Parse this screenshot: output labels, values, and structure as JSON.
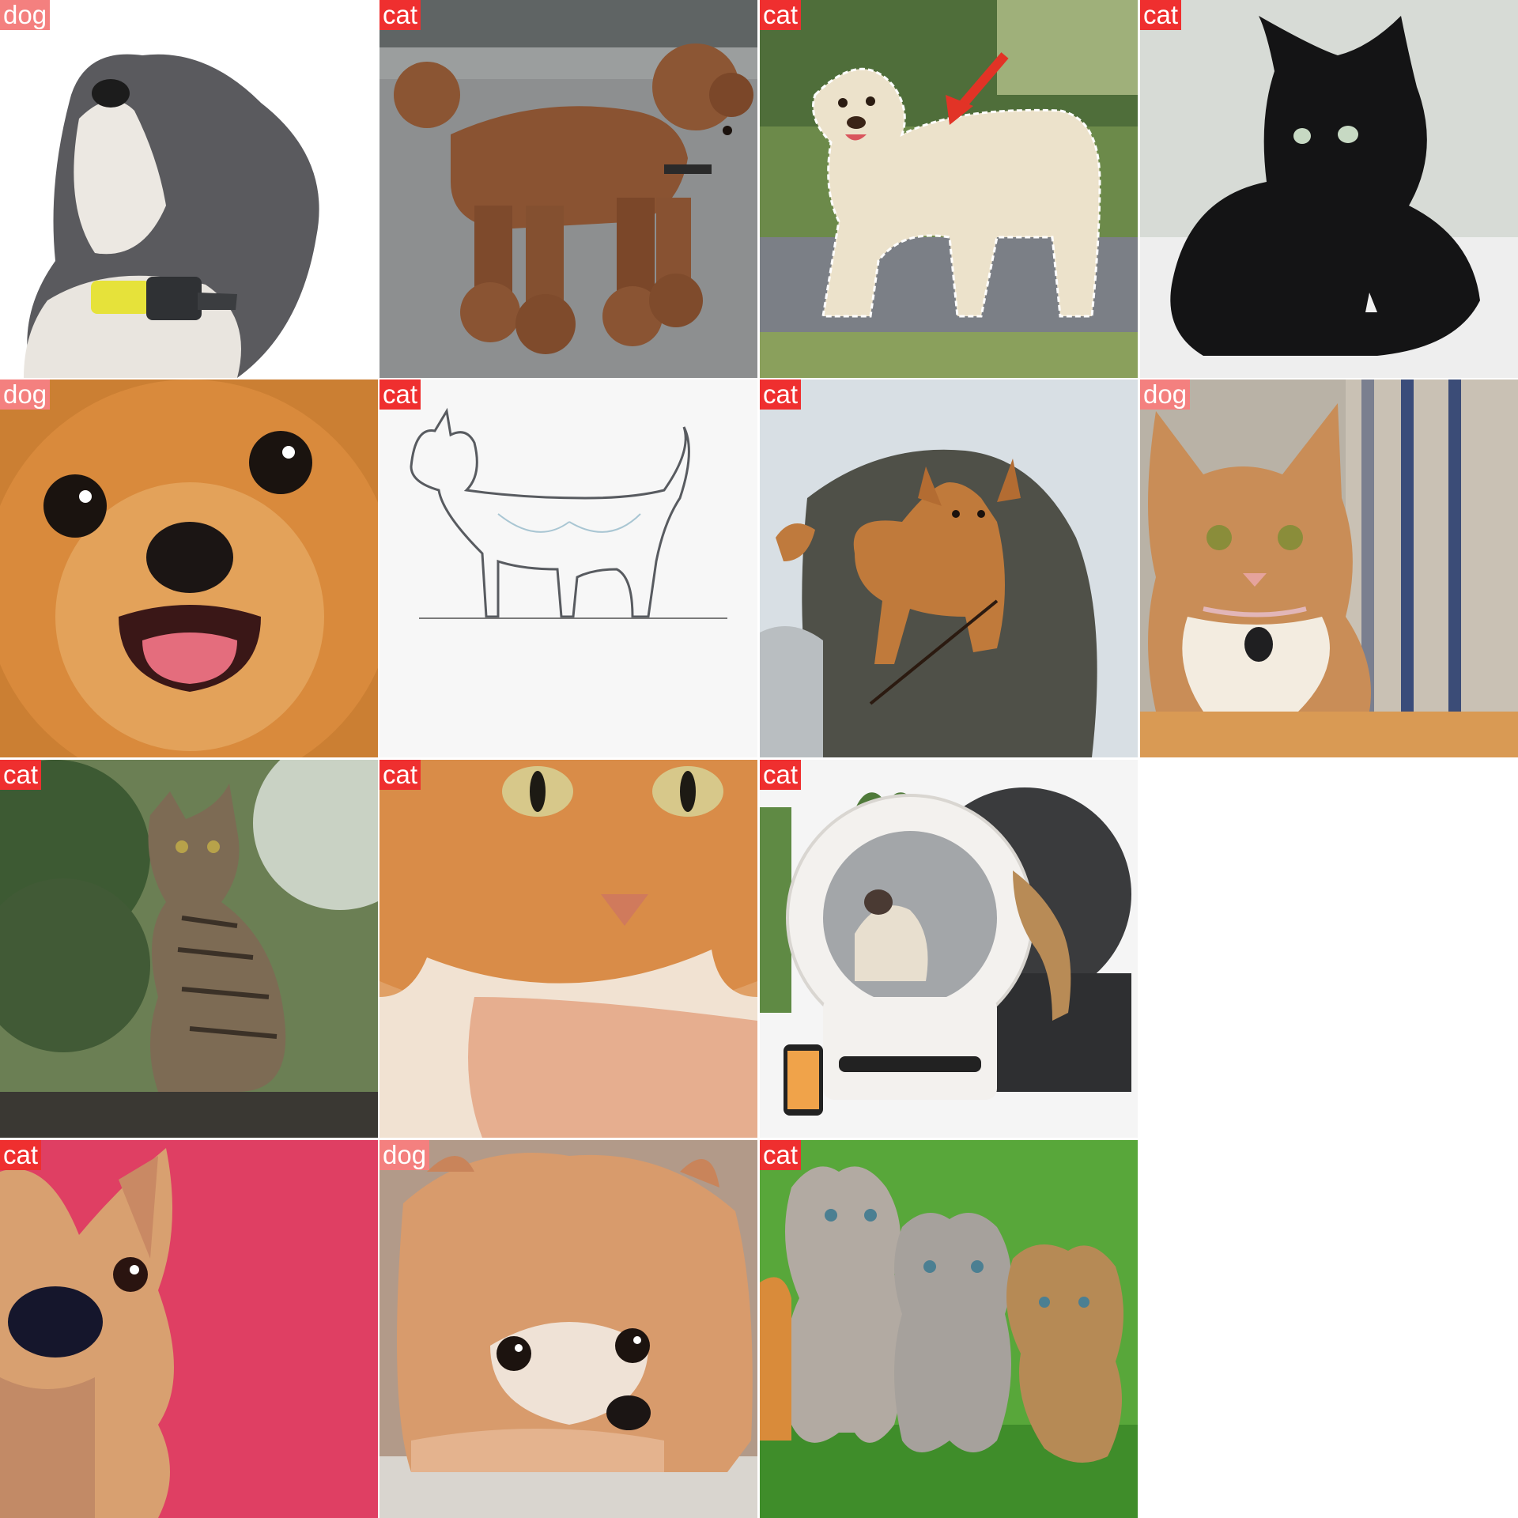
{
  "grid": {
    "tiles": [
      {
        "label": "dog",
        "subject": "shaggy grey-white puppy with yellow collar"
      },
      {
        "label": "cat",
        "subject": "brown poodle walking on road"
      },
      {
        "label": "cat",
        "subject": "labrador with dashed anatomy outline and red arrow"
      },
      {
        "label": "cat",
        "subject": "black cat lying on bed"
      },
      {
        "label": "dog",
        "subject": "close-up of orange pomeranian with open mouth"
      },
      {
        "label": "cat",
        "subject": "pencil sketch of standing cat"
      },
      {
        "label": "cat",
        "subject": "tan dog standing on rock"
      },
      {
        "label": "dog",
        "subject": "calico cat with collar tag"
      },
      {
        "label": "cat",
        "subject": "tabby cat sitting on wooden ledge"
      },
      {
        "label": "cat",
        "subject": "orange cat face close-up with hand"
      },
      {
        "label": "cat",
        "subject": "cats with automatic litter boxes"
      },
      {
        "label": "cat",
        "subject": "dog face on pink background"
      },
      {
        "label": "dog",
        "subject": "pomeranian lying with head down"
      },
      {
        "label": "cat",
        "subject": "three tabby kittens on grass"
      }
    ]
  }
}
